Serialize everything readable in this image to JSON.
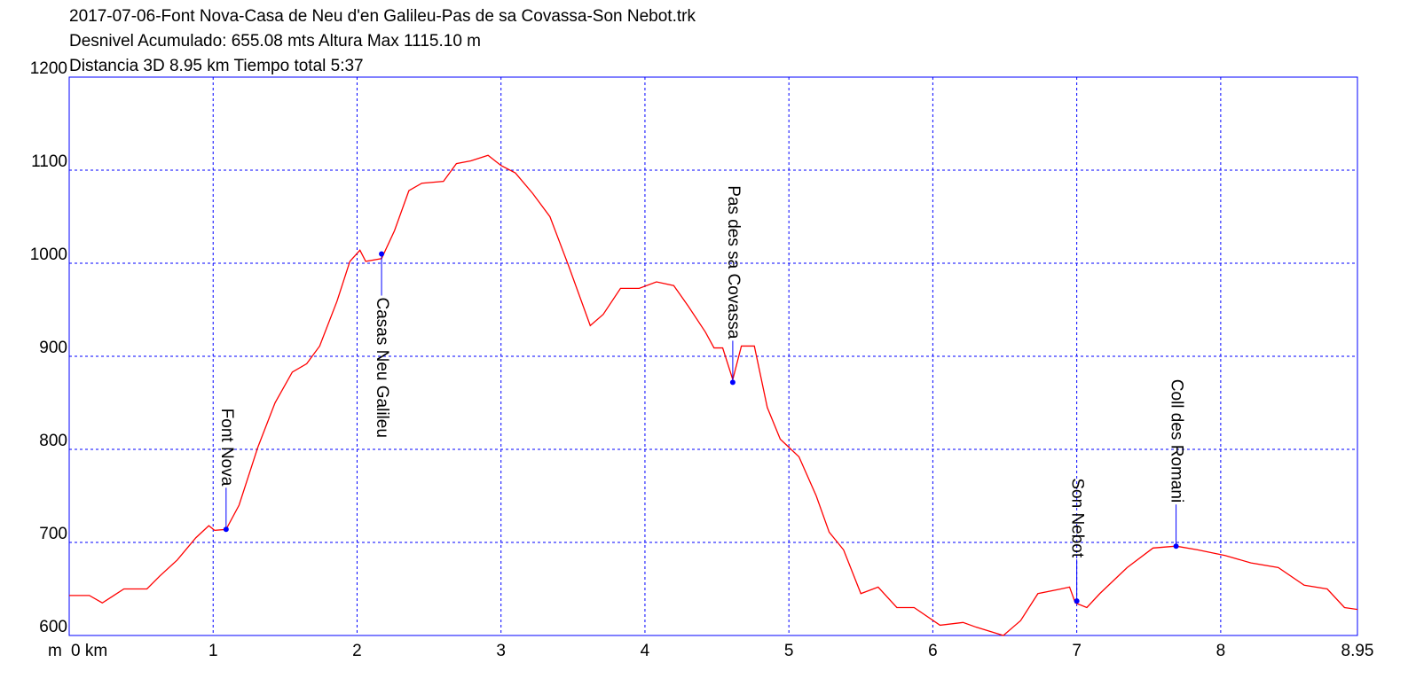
{
  "chart_data": {
    "type": "line",
    "title_lines": [
      "2017-07-06-Font Nova-Casa de Neu d'en Galileu-Pas de sa Covassa-Son Nebot.trk",
      "Desnivel Acumulado: 655.08 mts  Altura Max 1115.10 m",
      "Distancia 3D 8.95 km  Tiempo total 5:37"
    ],
    "y_unit": "m",
    "x": [
      0,
      0.14,
      0.23,
      0.38,
      0.54,
      0.63,
      0.75,
      0.88,
      0.97,
      1.01,
      1.09,
      1.18,
      1.31,
      1.43,
      1.55,
      1.65,
      1.74,
      1.86,
      1.95,
      2.02,
      2.06,
      2.17,
      2.26,
      2.36,
      2.45,
      2.6,
      2.69,
      2.79,
      2.91,
      3.0,
      3.1,
      3.22,
      3.34,
      3.47,
      3.62,
      3.71,
      3.83,
      3.96,
      4.08,
      4.2,
      4.3,
      4.42,
      4.48,
      4.54,
      4.61,
      4.67,
      4.76,
      4.85,
      4.94,
      5.07,
      5.19,
      5.28,
      5.38,
      5.5,
      5.62,
      5.75,
      5.87,
      6.05,
      6.21,
      6.3,
      6.49,
      6.61,
      6.73,
      6.89,
      6.95,
      6.99,
      7.07,
      7.16,
      7.35,
      7.53,
      7.69,
      7.84,
      8.03,
      8.21,
      8.4,
      8.58,
      8.74,
      8.86,
      8.95
    ],
    "series": [
      {
        "color": "#ff0000",
        "values": [
          643,
          643,
          635,
          650,
          650,
          664,
          681,
          705,
          718,
          713,
          714,
          740,
          802,
          850,
          883,
          892,
          911,
          959,
          1002,
          1014,
          1002,
          1005,
          1035,
          1078,
          1086,
          1088,
          1107,
          1110,
          1116,
          1105,
          1097,
          1075,
          1050,
          997,
          933,
          945,
          973,
          973,
          980,
          976,
          954,
          926,
          909,
          909,
          875,
          911,
          911,
          845,
          811,
          792,
          750,
          711,
          692,
          645,
          652,
          630,
          630,
          611,
          614,
          609,
          600,
          616,
          645,
          650,
          652,
          635,
          630,
          645,
          673,
          694,
          696,
          692,
          686,
          678,
          673,
          654,
          650,
          630,
          628
        ]
      }
    ],
    "waypoints": [
      {
        "name": "Font Nova",
        "x": 1.09,
        "y": 714,
        "label_position": "above"
      },
      {
        "name": "Casas Neu Galileu",
        "x": 2.17,
        "y": 1010,
        "label_position": "below"
      },
      {
        "name": "Pas des sa Covassa",
        "x": 4.61,
        "y": 872,
        "label_position": "above"
      },
      {
        "name": "Son Nebot",
        "x": 7.0,
        "y": 637,
        "label_position": "above"
      },
      {
        "name": "Coll des Romani",
        "x": 7.69,
        "y": 696,
        "label_position": "above"
      }
    ],
    "waypoint_color": "#0000ff",
    "xlim": [
      0,
      8.95
    ],
    "xticks": [
      {
        "value": 0,
        "label": "0 km"
      },
      1,
      2,
      3,
      4,
      5,
      6,
      7,
      8,
      8.95
    ],
    "ylim": [
      600,
      1200
    ],
    "yticks": [
      600,
      700,
      800,
      900,
      1000,
      1100,
      1200
    ],
    "grid": true,
    "grid_color": "#0000ff"
  }
}
